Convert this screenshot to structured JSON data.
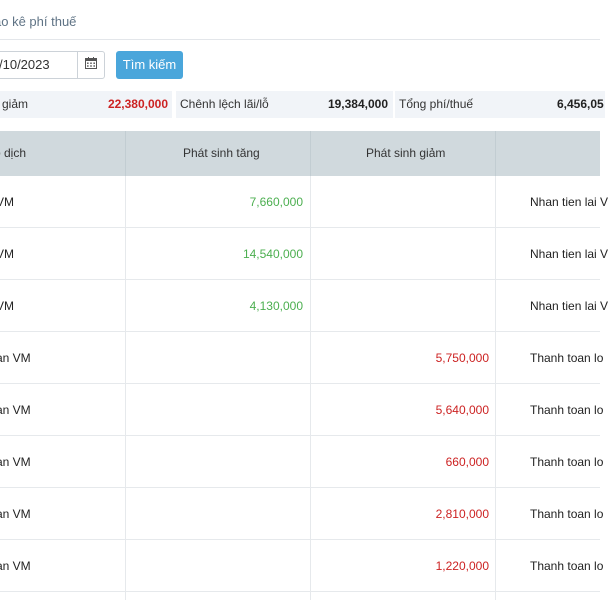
{
  "page": {
    "title": "ao kê phí thuế"
  },
  "search": {
    "date_value": "/10/2023",
    "button_label": "Tìm kiếm"
  },
  "summary": [
    {
      "label": "n giảm",
      "value": "22,380,000"
    },
    {
      "label": "Chênh lệch lãi/lỗ",
      "value": "19,384,000"
    },
    {
      "label": "Tổng phí/thuế",
      "value": "6,456,05"
    }
  ],
  "table": {
    "headers": [
      "o dịch",
      "Phát sinh tăng",
      "Phát sinh giảm"
    ],
    "rows": [
      {
        "desc": "VM",
        "increase": "7,660,000",
        "decrease": "",
        "note": "Nhan tien lai V"
      },
      {
        "desc": "VM",
        "increase": "14,540,000",
        "decrease": "",
        "note": "Nhan tien lai V"
      },
      {
        "desc": "VM",
        "increase": "4,130,000",
        "decrease": "",
        "note": "Nhan tien lai V"
      },
      {
        "desc": "an VM",
        "increase": "",
        "decrease": "5,750,000",
        "note": "Thanh toan lo"
      },
      {
        "desc": "an VM",
        "increase": "",
        "decrease": "5,640,000",
        "note": "Thanh toan lo"
      },
      {
        "desc": "an VM",
        "increase": "",
        "decrease": "660,000",
        "note": "Thanh toan lo"
      },
      {
        "desc": "an VM",
        "increase": "",
        "decrease": "2,810,000",
        "note": "Thanh toan lo"
      },
      {
        "desc": "an VM",
        "increase": "",
        "decrease": "1,220,000",
        "note": "Thanh toan lo"
      }
    ]
  },
  "colors": {
    "accent": "#4aa6db",
    "increase": "#4caf50",
    "decrease": "#cc2222",
    "header_bg": "#d0d9dd",
    "summary_bg": "#f1f4f8"
  },
  "icons": {
    "calendar": "calendar-icon"
  }
}
